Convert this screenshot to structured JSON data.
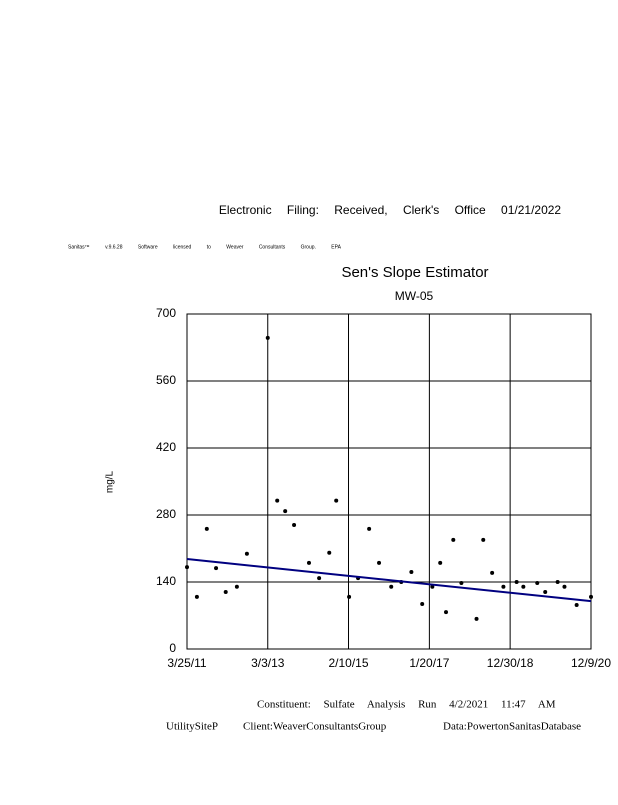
{
  "header": {
    "filing": "Electronic Filing: Received, Clerk's Office 01/21/2022",
    "license": "Sanitas™ v.9.6.28 Software licensed to Weaver Consultants Group. EPA"
  },
  "footer": {
    "line1": "Constituent: Sulfate    Analysis Run 4/2/2021    11:47 AM",
    "site": "UtilitySiteP",
    "client": "Client:WeaverConsultantsGroup",
    "data": "Data:PowertonSanitasDatabase"
  },
  "chart_data": {
    "type": "scatter",
    "title": "Sen's Slope Estimator",
    "subtitle": "MW-05",
    "y_label": "mg/L",
    "x": [
      "3/25/11",
      "6/20/11",
      "9/15/11",
      "12/5/11",
      "2/28/12",
      "6/5/12",
      "9/1/12",
      "3/3/13",
      "5/25/13",
      "8/3/13",
      "10/20/13",
      "2/28/14",
      "5/28/14",
      "8/25/14",
      "10/25/14",
      "2/15/15",
      "5/5/15",
      "8/10/15",
      "11/5/15",
      "2/20/16",
      "5/18/16",
      "8/15/16",
      "11/18/16",
      "2/15/17",
      "4/25/17",
      "6/15/17",
      "8/18/17",
      "10/28/17",
      "3/10/18",
      "5/8/18",
      "7/25/18",
      "11/1/18",
      "2/25/19",
      "4/25/19",
      "8/25/19",
      "11/3/19",
      "2/20/20",
      "4/20/20",
      "8/5/20",
      "12/9/20"
    ],
    "values": [
      171,
      109,
      251,
      169,
      119,
      130,
      199,
      650,
      310,
      288,
      259,
      180,
      148,
      201,
      310,
      109,
      148,
      251,
      180,
      130,
      140,
      161,
      94,
      130,
      180,
      77,
      228,
      138,
      63,
      228,
      159,
      130,
      140,
      130,
      138,
      119,
      140,
      130,
      92,
      109
    ],
    "color": "#000000",
    "trend": {
      "x": [
        "3/25/11",
        "12/9/20"
      ],
      "values": [
        188,
        100
      ],
      "color": "#000080"
    },
    "xlim": [
      "3/25/11",
      "12/9/20"
    ],
    "xticks": [
      "3/25/11",
      "3/3/13",
      "2/10/15",
      "1/20/17",
      "12/30/18",
      "12/9/20"
    ],
    "ylim": [
      0,
      700
    ],
    "yticks": [
      0,
      140,
      280,
      420,
      560,
      700
    ],
    "grid": true
  }
}
